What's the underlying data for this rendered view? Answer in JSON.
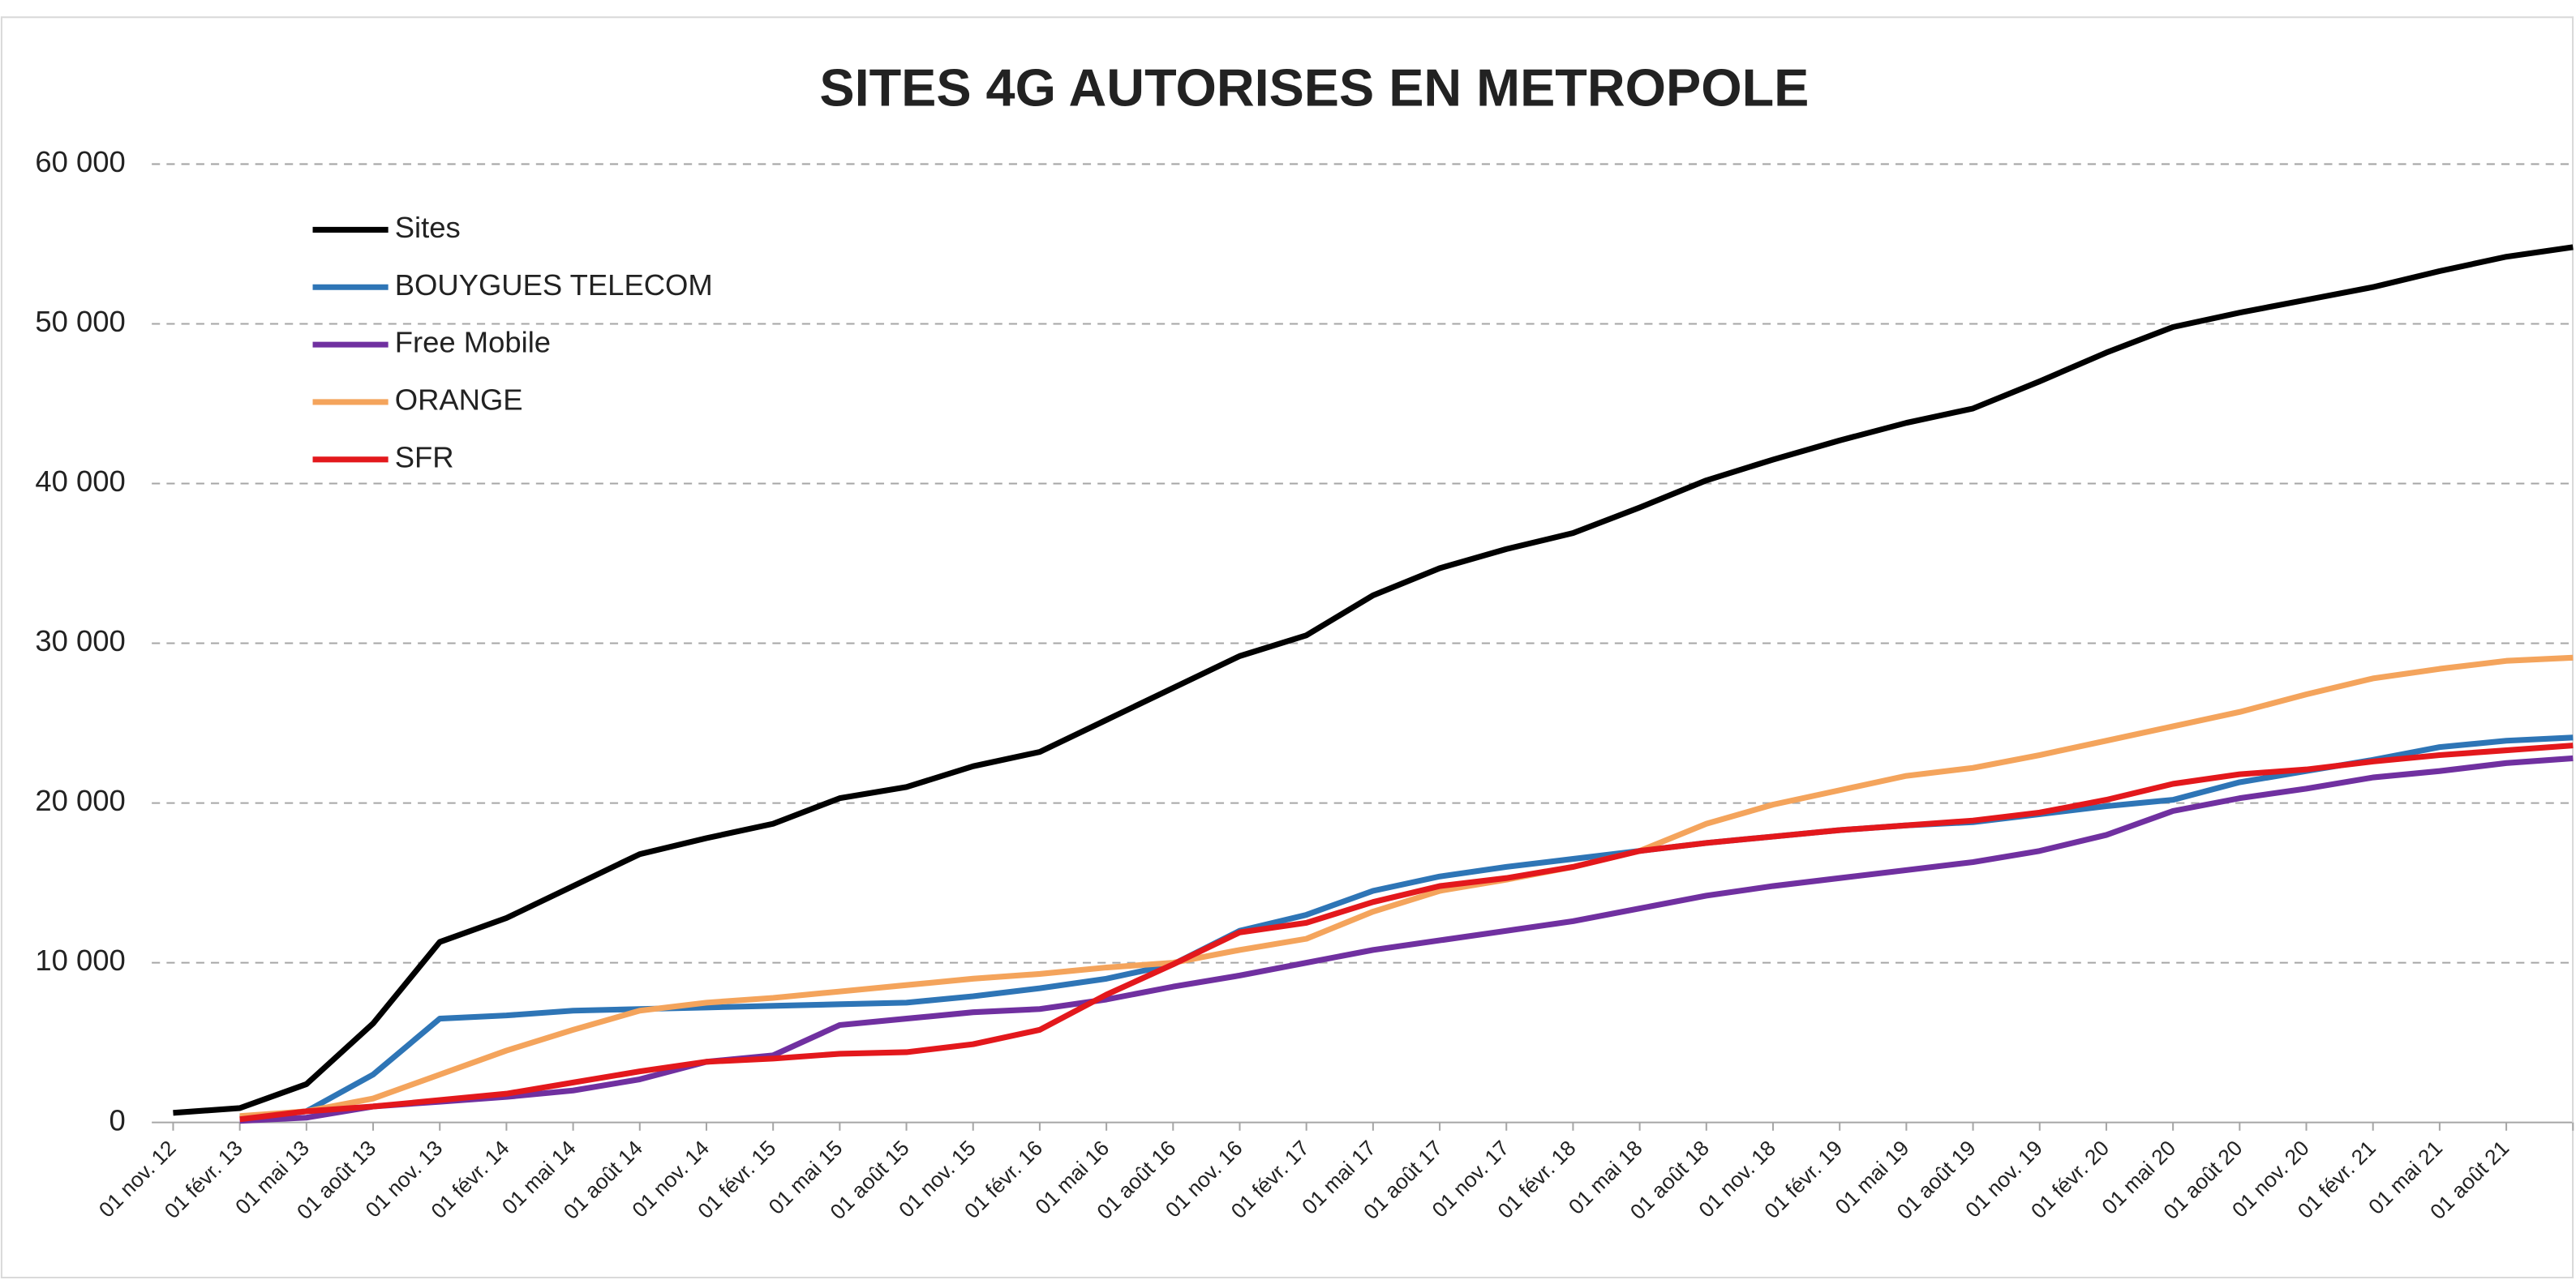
{
  "chart_data": {
    "type": "line",
    "title": "SITES 4G AUTORISES EN METROPOLE",
    "categories": [
      "01 nov. 12",
      "01 févr. 13",
      "01 mai 13",
      "01 août 13",
      "01 nov. 13",
      "01 févr. 14",
      "01 mai 14",
      "01 août 14",
      "01 nov. 14",
      "01 févr. 15",
      "01 mai 15",
      "01 août 15",
      "01 nov. 15",
      "01 févr. 16",
      "01 mai 16",
      "01 août 16",
      "01 nov. 16",
      "01 févr. 17",
      "01 mai 17",
      "01 août 17",
      "01 nov. 17",
      "01 févr. 18",
      "01 mai 18",
      "01 août 18",
      "01 nov. 18",
      "01 févr. 19",
      "01 mai 19",
      "01 août 19",
      "01 nov. 19",
      "01 févr. 20",
      "01 mai 20",
      "01 août 20",
      "01 nov. 20",
      "01 févr. 21",
      "01 mai 21",
      "01 août 21",
      null
    ],
    "series": [
      {
        "name": "Sites",
        "color": "#000000",
        "values": [
          600,
          900,
          2400,
          6200,
          11300,
          12800,
          14800,
          16800,
          17800,
          18700,
          20300,
          21000,
          22300,
          23200,
          25200,
          27200,
          29200,
          30500,
          33000,
          34700,
          35900,
          36900,
          38500,
          40200,
          41500,
          42700,
          43800,
          44700,
          46400,
          48200,
          49800,
          50700,
          51500,
          52300,
          53300,
          54200,
          54800
        ]
      },
      {
        "name": "BOUYGUES TELECOM",
        "color": "#2e75b6",
        "values": [
          null,
          300,
          700,
          3000,
          6500,
          6700,
          7000,
          7100,
          7200,
          7300,
          7400,
          7500,
          7900,
          8400,
          9000,
          9900,
          12000,
          13000,
          14500,
          15400,
          16000,
          16500,
          17000,
          17500,
          17900,
          18300,
          18600,
          18800,
          19300,
          19800,
          20200,
          21300,
          22000,
          22700,
          23500,
          23900,
          24100
        ]
      },
      {
        "name": "Free Mobile",
        "color": "#7030a0",
        "values": [
          null,
          100,
          300,
          1000,
          1300,
          1600,
          2000,
          2700,
          3800,
          4200,
          6100,
          6500,
          6900,
          7100,
          7700,
          8500,
          9200,
          10000,
          10800,
          11400,
          12000,
          12600,
          13400,
          14200,
          14800,
          15300,
          15800,
          16300,
          17000,
          18000,
          19500,
          20300,
          20900,
          21600,
          22000,
          22500,
          22800
        ]
      },
      {
        "name": "ORANGE",
        "color": "#f4a45c",
        "values": [
          null,
          400,
          700,
          1500,
          3000,
          4500,
          5800,
          7000,
          7500,
          7800,
          8200,
          8600,
          9000,
          9300,
          9700,
          10000,
          10800,
          11500,
          13200,
          14500,
          15200,
          16000,
          17000,
          18700,
          19900,
          20800,
          21700,
          22200,
          23000,
          23900,
          24800,
          25700,
          26800,
          27800,
          28400,
          28900,
          29100
        ]
      },
      {
        "name": "SFR",
        "color": "#e3181c",
        "values": [
          null,
          200,
          700,
          1000,
          1400,
          1800,
          2500,
          3200,
          3800,
          4000,
          4300,
          4400,
          4900,
          5800,
          8000,
          9900,
          11900,
          12500,
          13800,
          14800,
          15300,
          16000,
          17000,
          17500,
          17900,
          18300,
          18600,
          18900,
          19400,
          20200,
          21200,
          21800,
          22100,
          22600,
          23000,
          23300,
          23600
        ]
      }
    ],
    "ylim": [
      0,
      60000
    ],
    "yticks": [
      0,
      {
        "value": 10000,
        "label": "10 000"
      },
      {
        "value": 20000,
        "label": "20 000"
      },
      {
        "value": 30000,
        "label": "30 000"
      },
      {
        "value": 40000,
        "label": "40 000"
      },
      {
        "value": 50000,
        "label": "50 000"
      },
      {
        "value": 60000,
        "label": "60 000"
      }
    ],
    "grid": true,
    "legend": "upper left"
  }
}
